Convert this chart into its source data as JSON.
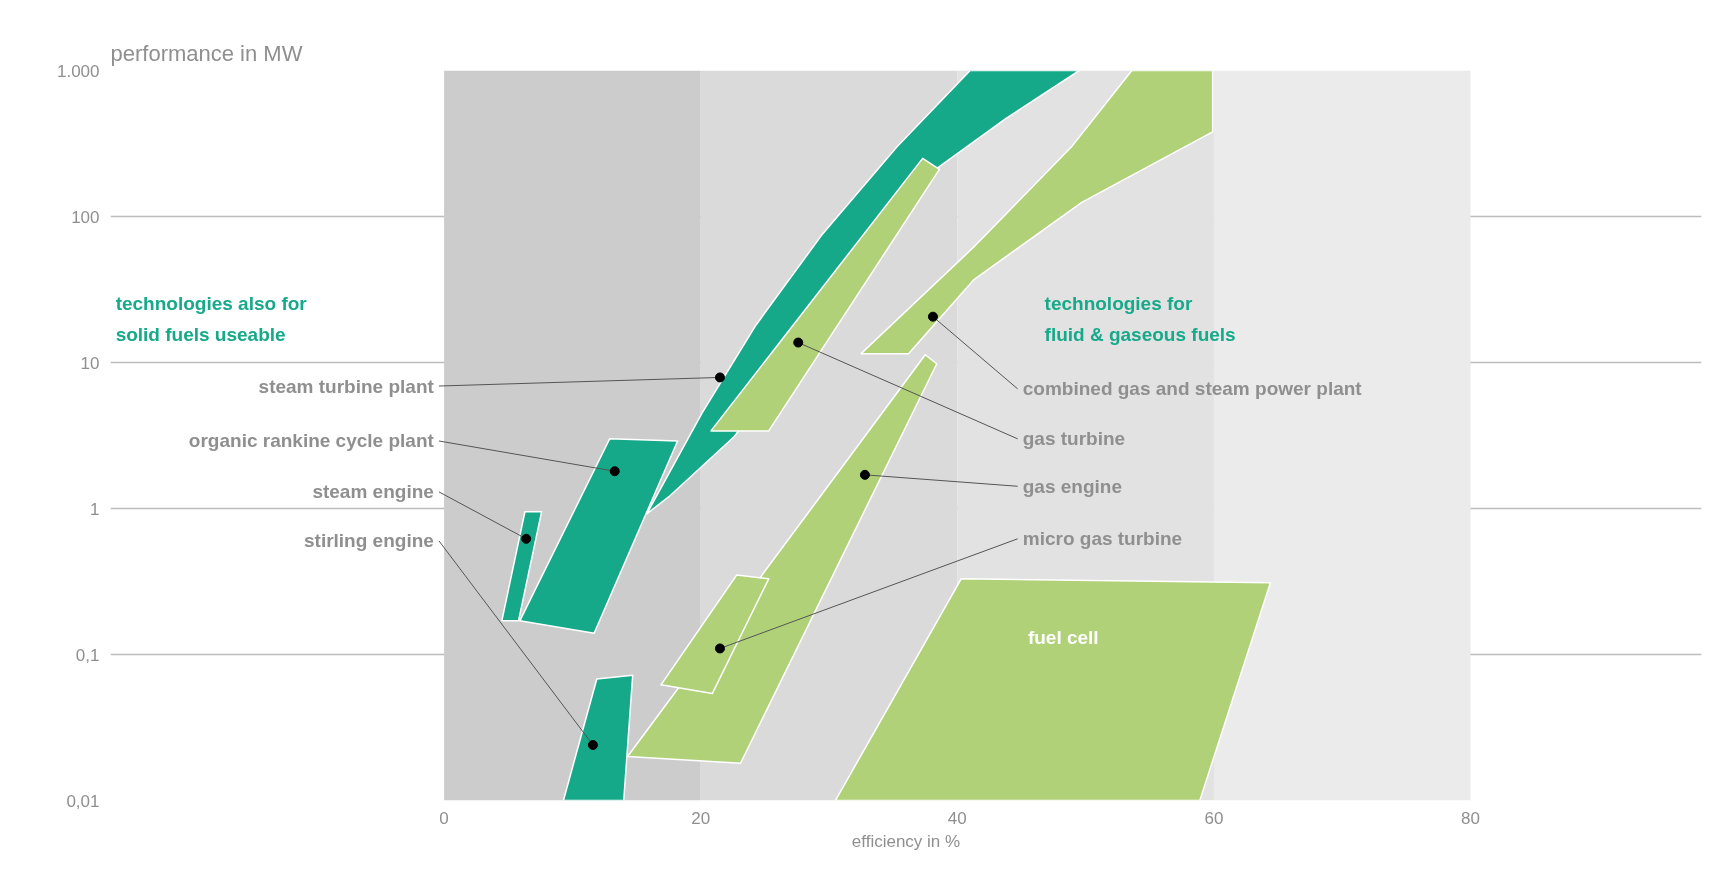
{
  "chart_data": {
    "type": "area",
    "xlabel": "efficiency in %",
    "ylabel": "performance in MW",
    "xlim": [
      -26,
      98
    ],
    "ylim": [
      0.01,
      1000
    ],
    "log": "y",
    "xticks": [
      0,
      20,
      40,
      60,
      80
    ],
    "yticks": [
      {
        "value": 0.01,
        "label": "0,01"
      },
      {
        "value": 0.1,
        "label": "0,1"
      },
      {
        "value": 1,
        "label": "1"
      },
      {
        "value": 10,
        "label": "10"
      },
      {
        "value": 100,
        "label": "100"
      },
      {
        "value": 1000,
        "label": "1.000"
      }
    ],
    "grid": "y",
    "bands": [
      {
        "axis": "x",
        "from": 0,
        "to": 20,
        "color": "#cccccc"
      },
      {
        "axis": "x",
        "from": 20,
        "to": 40,
        "color": "#dadada"
      },
      {
        "axis": "x",
        "from": 40,
        "to": 60,
        "color": "#e2e2e2"
      },
      {
        "axis": "x",
        "from": 60,
        "to": 80,
        "color": "#ebebeb"
      }
    ],
    "series": [
      {
        "color": "#15a98a",
        "x": [
          15.8,
          20.1,
          24.3,
          29.4,
          35.3,
          41.0,
          49.5,
          43.8,
          38.3,
          22.6,
          17.5
        ],
        "values": [
          0.92,
          4.5,
          18,
          74,
          300,
          1000,
          1000,
          470,
          210,
          3.1,
          1.2
        ]
      },
      {
        "color": "#15a98a",
        "x": [
          9.3,
          11.9,
          14.7,
          14.0
        ],
        "values": [
          0.01,
          0.068,
          0.072,
          0.01
        ]
      },
      {
        "color": "#15a98a",
        "x": [
          5.9,
          12.9,
          18.2,
          11.7
        ],
        "values": [
          0.17,
          3.0,
          2.9,
          0.14
        ]
      },
      {
        "color": "#15a98a",
        "x": [
          4.5,
          6.3,
          7.6,
          5.8
        ],
        "values": [
          0.17,
          0.95,
          0.95,
          0.17
        ]
      },
      {
        "color": "#b0d178",
        "x": [
          20.8,
          37.3,
          38.6,
          25.3
        ],
        "values": [
          3.4,
          250,
          210,
          3.4
        ]
      },
      {
        "color": "#b0d178",
        "x": [
          32.5,
          41.3,
          48.9,
          53.6,
          59.9,
          59.9,
          49.7,
          41.3,
          36.2
        ],
        "values": [
          11.5,
          62,
          300,
          1000,
          1000,
          380,
          125,
          37,
          11.5
        ]
      },
      {
        "color": "#b0d178",
        "x": [
          14.3,
          37.5,
          38.4,
          23.1
        ],
        "values": [
          0.02,
          11.3,
          9.8,
          0.018
        ]
      },
      {
        "color": "#b0d178",
        "x": [
          16.9,
          22.8,
          25.3,
          20.9
        ],
        "values": [
          0.062,
          0.35,
          0.33,
          0.054
        ]
      },
      {
        "color": "#b0d178",
        "x": [
          30.5,
          40.3,
          64.4,
          58.9
        ],
        "values": [
          0.01,
          0.33,
          0.31,
          0.01
        ]
      },
      {
        "type": "scatter",
        "color": "#000000",
        "marker": "circle",
        "x": [
          21.5,
          13.3,
          6.4,
          11.6,
          27.6,
          38.1,
          32.8,
          21.5
        ],
        "values": [
          7.9,
          1.8,
          0.62,
          0.024,
          13.7,
          20.6,
          1.7,
          0.11
        ]
      }
    ],
    "annotations": [
      "technologies also for\nsolid fuels useable",
      "technologies for\nfluid & gaseous fuels",
      {
        "text": "steam turbine plant",
        "x": 21.5,
        "y": 7.9
      },
      {
        "text": "organic rankine cycle plant",
        "x": 13.3,
        "y": 1.8
      },
      {
        "text": "steam engine",
        "x": 6.4,
        "y": 0.62
      },
      {
        "text": "stirling engine",
        "x": 11.6,
        "y": 0.024
      },
      {
        "text": "gas turbine",
        "x": 27.6,
        "y": 13.7
      },
      {
        "text": "combined gas and steam power plant",
        "x": 38.1,
        "y": 20.6
      },
      {
        "text": "gas engine",
        "x": 32.8,
        "y": 1.7
      },
      {
        "text": "micro gas turbine",
        "x": 21.5,
        "y": 0.11
      },
      "fuel cell"
    ]
  }
}
